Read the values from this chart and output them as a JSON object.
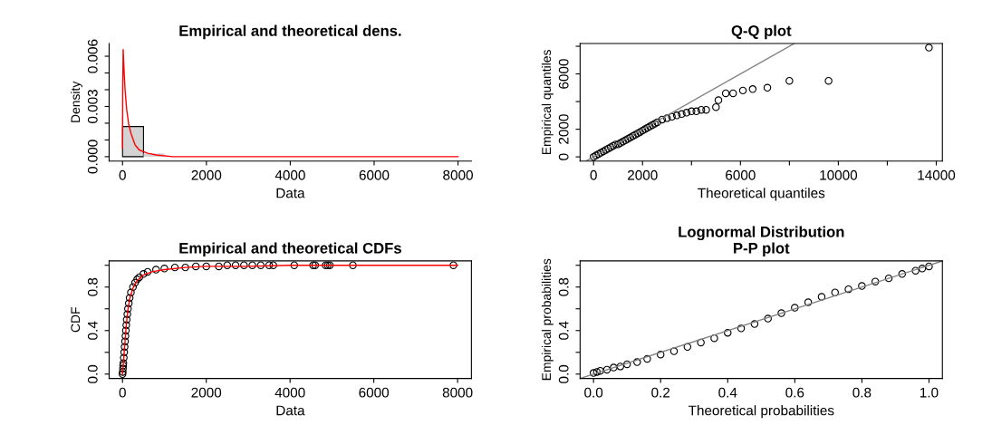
{
  "chart_data": [
    {
      "type": "histogram",
      "title": "Empirical and theoretical dens.",
      "xlabel": "Data",
      "ylabel": "Density",
      "xlim": [
        -320,
        8320
      ],
      "ylim": [
        -0.00026,
        0.00676
      ],
      "xticks": [
        0,
        2000,
        4000,
        6000,
        8000
      ],
      "yticks": [
        {
          "value": 0.0,
          "label": "0.000"
        },
        {
          "value": 0.001,
          "label": null
        },
        {
          "value": 0.002,
          "label": null
        },
        {
          "value": 0.003,
          "label": "0.003"
        },
        {
          "value": 0.004,
          "label": null
        },
        {
          "value": 0.005,
          "label": null
        },
        {
          "value": 0.006,
          "label": "0.006"
        }
      ],
      "grid": false,
      "series": [
        {
          "type": "histogram",
          "color": "#d3d3d3",
          "bins": [
            0,
            500,
            1000,
            1500,
            2000,
            2500,
            3000,
            3500,
            4000,
            4500,
            5000,
            5500,
            6000,
            6500,
            7000,
            7500,
            8000
          ],
          "values": [
            0.0018,
            0.0002,
            0,
            0,
            0,
            0,
            0,
            0,
            0,
            0,
            0,
            0,
            0,
            0,
            0,
            0
          ]
        },
        {
          "type": "line",
          "color": "#ff0000",
          "marker": "none",
          "x": [
            1,
            5,
            15,
            30,
            60,
            100,
            150,
            200,
            300,
            400,
            600,
            800,
            1200,
            2000,
            4000,
            8000
          ],
          "values": [
            0.0005,
            0.004,
            0.0064,
            0.0055,
            0.004,
            0.0028,
            0.0019,
            0.0014,
            0.0007,
            0.0004,
            0.0002,
            0.0001,
            0,
            0,
            0,
            0
          ]
        }
      ]
    },
    {
      "type": "scatter",
      "title": "Q-Q plot",
      "xlabel": "Theoretical quantiles",
      "ylabel": "Empirical quantiles",
      "xlim": [
        -550,
        14250
      ],
      "ylim": [
        -300,
        8200
      ],
      "xticks": [
        0,
        2000,
        {
          "value": 4000,
          "label": null
        },
        6000,
        {
          "value": 8000,
          "label": null
        },
        10000,
        {
          "value": 12000,
          "label": null
        },
        14000
      ],
      "yticks": [
        0,
        2000,
        {
          "value": 4000,
          "label": null
        },
        6000,
        {
          "value": 8000,
          "label": null
        }
      ],
      "grid": false,
      "series": [
        {
          "type": "line",
          "color": "#808080",
          "marker": "none",
          "x": [
            -300,
            8200
          ],
          "values": [
            -300,
            8200
          ]
        },
        {
          "type": "scatter",
          "color": "#000000",
          "marker": "circle",
          "x": [
            0,
            100,
            200,
            300,
            400,
            500,
            600,
            700,
            800,
            900,
            1000,
            1100,
            1200,
            1300,
            1400,
            1500,
            1600,
            1700,
            1800,
            1900,
            2000,
            2100,
            2200,
            2300,
            2400,
            2500,
            2600,
            2800,
            3000,
            3200,
            3400,
            3600,
            3800,
            4000,
            4200,
            4400,
            4600,
            5000,
            5100,
            5400,
            5700,
            6100,
            6500,
            7100,
            8000,
            9600,
            13700
          ],
          "values": [
            0,
            100,
            200,
            300,
            400,
            500,
            600,
            700,
            800,
            900,
            900,
            1000,
            1100,
            1200,
            1300,
            1400,
            1500,
            1600,
            1700,
            1800,
            1900,
            2000,
            2100,
            2200,
            2300,
            2400,
            2500,
            2700,
            2800,
            2900,
            3000,
            3100,
            3200,
            3300,
            3300,
            3400,
            3400,
            3600,
            4100,
            4600,
            4600,
            4800,
            4900,
            5000,
            5500,
            5500,
            7900
          ]
        }
      ]
    },
    {
      "type": "scatter",
      "title": "Empirical and theoretical CDFs",
      "xlabel": "Data",
      "ylabel": "CDF",
      "xlim": [
        -320,
        8330
      ],
      "ylim": [
        -0.04,
        1.04
      ],
      "xticks": [
        0,
        2000,
        4000,
        6000,
        8000
      ],
      "yticks": [
        {
          "value": 0.0,
          "label": "0.0"
        },
        {
          "value": 0.2,
          "label": null
        },
        0.4,
        {
          "value": 0.6,
          "label": null
        },
        0.8,
        {
          "value": 1.0,
          "label": null
        }
      ],
      "grid": false,
      "series": [
        {
          "type": "scatter",
          "color": "#000000",
          "marker": "circle",
          "x": [
            0,
            5,
            10,
            15,
            20,
            30,
            40,
            50,
            60,
            70,
            80,
            90,
            100,
            115,
            130,
            150,
            170,
            200,
            250,
            300,
            350,
            400,
            500,
            600,
            800,
            1000,
            1250,
            1500,
            1750,
            2000,
            2300,
            2500,
            2700,
            2900,
            3100,
            3300,
            3500,
            3600,
            4100,
            4550,
            4600,
            4850,
            4900,
            4950,
            5500,
            7900
          ],
          "values": [
            0.0,
            0.02,
            0.05,
            0.08,
            0.1,
            0.15,
            0.2,
            0.25,
            0.3,
            0.35,
            0.4,
            0.45,
            0.5,
            0.55,
            0.6,
            0.65,
            0.7,
            0.75,
            0.8,
            0.84,
            0.87,
            0.89,
            0.92,
            0.94,
            0.96,
            0.97,
            0.98,
            0.98,
            0.99,
            0.99,
            0.99,
            1.0,
            1.0,
            1.0,
            1.0,
            1.0,
            1.0,
            1.0,
            1.0,
            1.0,
            1.0,
            1.0,
            1.0,
            1.0,
            1.0,
            1.0
          ]
        },
        {
          "type": "line",
          "color": "#ff0000",
          "marker": "none",
          "x": [
            0,
            10,
            20,
            40,
            60,
            80,
            100,
            130,
            170,
            250,
            350,
            500,
            700,
            1000,
            1500,
            2000,
            3000,
            4000,
            6000,
            8000
          ],
          "values": [
            0.0,
            0.04,
            0.1,
            0.2,
            0.3,
            0.4,
            0.49,
            0.59,
            0.69,
            0.79,
            0.86,
            0.91,
            0.94,
            0.96,
            0.98,
            0.99,
            0.99,
            1.0,
            1.0,
            1.0
          ]
        }
      ]
    },
    {
      "type": "scatter",
      "title": "P-P plot",
      "subtitle": "Lognormal Distribution",
      "xlabel": "Theoretical probabilities",
      "ylabel": "Empirical probabilities",
      "xlim": [
        -0.04,
        1.04
      ],
      "ylim": [
        -0.04,
        1.04
      ],
      "xticks": [
        {
          "value": 0.0,
          "label": "0.0"
        },
        0.2,
        0.4,
        0.6,
        0.8,
        {
          "value": 1.0,
          "label": "1.0"
        }
      ],
      "yticks": [
        {
          "value": 0.0,
          "label": "0.0"
        },
        {
          "value": 0.2,
          "label": null
        },
        0.4,
        {
          "value": 0.6,
          "label": null
        },
        0.8,
        {
          "value": 1.0,
          "label": null
        }
      ],
      "grid": false,
      "series": [
        {
          "type": "line",
          "color": "#808080",
          "marker": "none",
          "x": [
            -0.04,
            1.04
          ],
          "values": [
            -0.04,
            1.04
          ]
        },
        {
          "type": "scatter",
          "color": "#000000",
          "marker": "circle",
          "x": [
            0.0,
            0.01,
            0.02,
            0.04,
            0.06,
            0.08,
            0.1,
            0.13,
            0.16,
            0.2,
            0.24,
            0.28,
            0.32,
            0.36,
            0.4,
            0.44,
            0.48,
            0.52,
            0.56,
            0.6,
            0.64,
            0.68,
            0.72,
            0.76,
            0.8,
            0.84,
            0.88,
            0.92,
            0.96,
            0.98,
            1.0
          ],
          "values": [
            0.01,
            0.02,
            0.03,
            0.04,
            0.06,
            0.07,
            0.09,
            0.11,
            0.14,
            0.18,
            0.21,
            0.25,
            0.29,
            0.33,
            0.38,
            0.42,
            0.46,
            0.51,
            0.56,
            0.61,
            0.66,
            0.71,
            0.75,
            0.78,
            0.81,
            0.85,
            0.88,
            0.92,
            0.95,
            0.97,
            0.99
          ]
        }
      ]
    }
  ]
}
